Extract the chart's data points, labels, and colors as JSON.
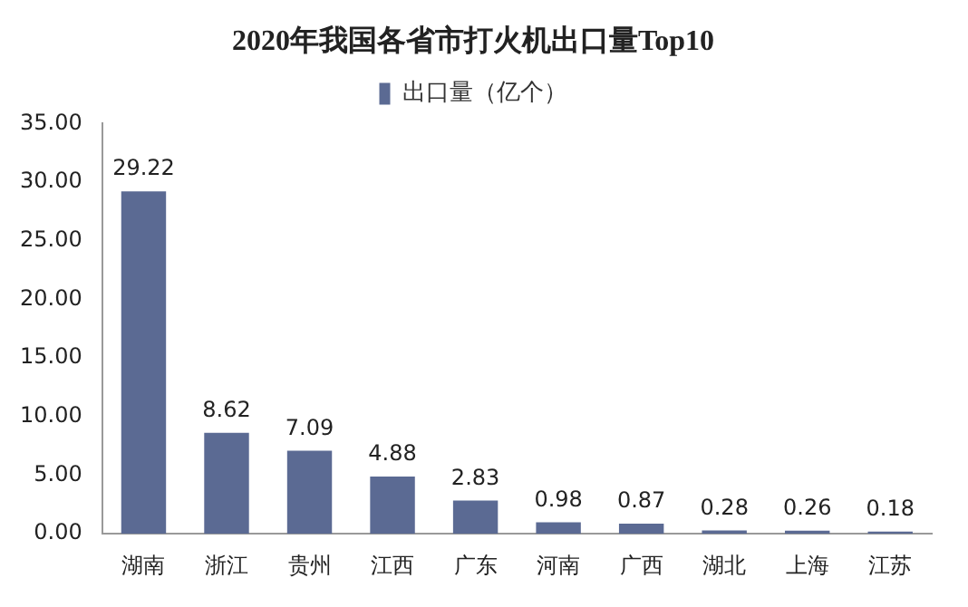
{
  "chart_data": {
    "type": "bar",
    "title": "2020年我国各省市打火机出口量Top10",
    "categories": [
      "湖南",
      "浙江",
      "贵州",
      "江西",
      "广东",
      "河南",
      "广西",
      "湖北",
      "上海",
      "江苏"
    ],
    "series": [
      {
        "name": "出口量（亿个）",
        "color": "#5b6a93",
        "values": [
          29.22,
          8.62,
          7.09,
          4.88,
          2.83,
          0.98,
          0.87,
          0.28,
          0.26,
          0.18
        ]
      }
    ],
    "ylim": [
      0,
      35
    ],
    "yticks": [
      {
        "value": 0,
        "label": "0.00"
      },
      {
        "value": 5,
        "label": "5.00"
      },
      {
        "value": 10,
        "label": "10.00"
      },
      {
        "value": 15,
        "label": "15.00"
      },
      {
        "value": 20,
        "label": "20.00"
      },
      {
        "value": 25,
        "label": "25.00"
      },
      {
        "value": 30,
        "label": "30.00"
      },
      {
        "value": 35,
        "label": "35.00"
      }
    ],
    "grid": false,
    "legend": "top",
    "data_labels": true
  }
}
